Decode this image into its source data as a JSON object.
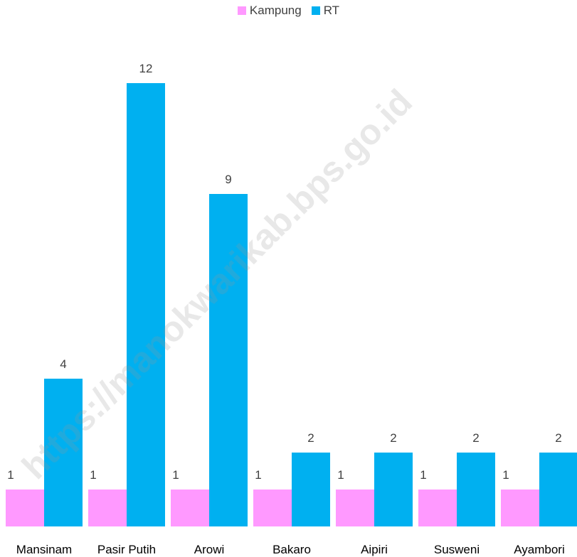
{
  "chart_data": {
    "type": "bar",
    "categories": [
      "Mansinam",
      "Pasir Putih",
      "Arowi",
      "Bakaro",
      "Aipiri",
      "Susweni",
      "Ayambori"
    ],
    "series": [
      {
        "name": "Kampung",
        "values": [
          1,
          1,
          1,
          1,
          1,
          1,
          1
        ],
        "color": "#FF99FF"
      },
      {
        "name": "RT",
        "values": [
          4,
          12,
          9,
          2,
          2,
          2,
          2
        ],
        "color": "#00B0F0"
      }
    ],
    "ylim": [
      0,
      13
    ],
    "grid": false,
    "legend_position": "top-center",
    "data_labels": true
  },
  "watermark": "https://manokwarikab.bps.go.id"
}
